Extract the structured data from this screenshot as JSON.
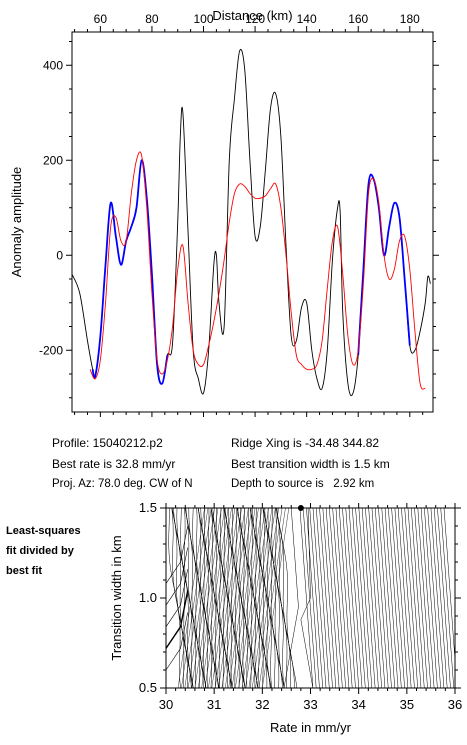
{
  "chart_data": [
    {
      "type": "line",
      "title": "",
      "xlabel": "Distance (km)",
      "ylabel": "Anomaly amplitude",
      "xlim": [
        49,
        189
      ],
      "ylim": [
        -330,
        470
      ],
      "xticks": [
        60,
        80,
        100,
        120,
        140,
        160,
        180
      ],
      "yticks": [
        -200,
        0,
        200,
        400
      ],
      "series": [
        {
          "style": "observed",
          "color": "#000000",
          "x": [
            49,
            52,
            55,
            57,
            58,
            60,
            62,
            64,
            66,
            68,
            70,
            72,
            74,
            76,
            78,
            80,
            82,
            84,
            86,
            88,
            90,
            91,
            92,
            94,
            96,
            98,
            100,
            102,
            104,
            105,
            106,
            108,
            110,
            112,
            114,
            116,
            118,
            120,
            122,
            124,
            126,
            128,
            130,
            132,
            134,
            136,
            138,
            140,
            142,
            144,
            146,
            148,
            150,
            152,
            153,
            154,
            156,
            158,
            160,
            162,
            164,
            166,
            168,
            170,
            172,
            174,
            176,
            178,
            180,
            182,
            184,
            186,
            187,
            188
          ],
          "y": [
            -40,
            -80,
            -180,
            -240,
            -255,
            -170,
            -20,
            110,
            40,
            -20,
            30,
            60,
            100,
            200,
            120,
            -40,
            -230,
            -270,
            -210,
            -185,
            70,
            250,
            300,
            50,
            -200,
            -260,
            -290,
            -200,
            -20,
            0,
            -100,
            -150,
            200,
            330,
            430,
            390,
            200,
            40,
            60,
            180,
            310,
            340,
            250,
            20,
            -170,
            -180,
            -110,
            -100,
            -200,
            -260,
            -280,
            -200,
            -10,
            100,
            90,
            -120,
            -270,
            -290,
            -210,
            -30,
            150,
            160,
            100,
            0,
            60,
            110,
            80,
            -50,
            -190,
            -200,
            -160,
            -100,
            -45,
            -60
          ]
        },
        {
          "style": "observed-fit-region",
          "color": "#0000ff",
          "x": [
            57,
            58,
            60,
            62,
            64,
            66,
            68,
            70,
            72,
            74,
            76,
            78,
            80,
            82,
            84,
            86,
            160,
            162,
            164,
            166,
            168,
            170,
            172,
            174,
            176,
            178,
            180
          ],
          "y": [
            -240,
            -255,
            -170,
            -20,
            110,
            40,
            -20,
            30,
            60,
            100,
            200,
            120,
            -40,
            -230,
            -270,
            -210,
            -210,
            -30,
            150,
            160,
            100,
            0,
            60,
            110,
            80,
            -50,
            -190
          ]
        },
        {
          "style": "synthetic",
          "color": "#ff0000",
          "x": [
            56,
            58,
            60,
            62,
            64,
            66,
            68,
            70,
            72,
            74,
            76,
            78,
            80,
            82,
            84,
            86,
            88,
            90,
            92,
            94,
            96,
            98,
            100,
            102,
            104,
            106,
            108,
            110,
            112,
            114,
            116,
            118,
            120,
            122,
            124,
            126,
            128,
            130,
            132,
            134,
            136,
            138,
            140,
            142,
            144,
            146,
            148,
            150,
            152,
            154,
            156,
            158,
            160,
            162,
            164,
            166,
            168,
            170,
            172,
            174,
            176,
            178,
            180,
            182,
            184,
            186
          ],
          "y": [
            -240,
            -260,
            -220,
            -100,
            60,
            80,
            30,
            30,
            130,
            200,
            210,
            100,
            -80,
            -220,
            -250,
            -220,
            -150,
            -30,
            20,
            -100,
            -200,
            -230,
            -230,
            -190,
            -140,
            -80,
            -10,
            70,
            130,
            150,
            145,
            130,
            120,
            120,
            125,
            140,
            150,
            100,
            0,
            -120,
            -210,
            -230,
            -240,
            -240,
            -230,
            -180,
            -70,
            30,
            60,
            -40,
            -170,
            -230,
            -200,
            -60,
            130,
            160,
            110,
            0,
            -50,
            -30,
            30,
            40,
            -30,
            -160,
            -270,
            -280
          ]
        }
      ]
    },
    {
      "type": "contour",
      "title": "",
      "xlabel": "Rate in mm/yr",
      "ylabel": "Transition width in km",
      "xlim": [
        30,
        36
      ],
      "ylim": [
        0.5,
        1.5
      ],
      "xticks": [
        30,
        31,
        32,
        33,
        34,
        35,
        36
      ],
      "yticks": [
        0.5,
        1.0,
        1.5
      ],
      "ytick_labels": [
        "0.5",
        "1.0",
        "1.5"
      ],
      "best_fit": {
        "rate": 32.8,
        "width": 1.5
      }
    }
  ],
  "info": {
    "profile": "Profile: 15040212.p2",
    "best_rate": "Best rate is 32.8 mm/yr",
    "proj_az": "Proj. Az: 78.0 deg. CW of N",
    "ridge_xing": "Ridge Xing is -34.48 344.82",
    "best_width": "Best transition width is 1.5 km",
    "depth": "Depth to source is   2.92 km"
  },
  "side_label": [
    "Least-squares",
    "fit divided by",
    "best fit"
  ]
}
